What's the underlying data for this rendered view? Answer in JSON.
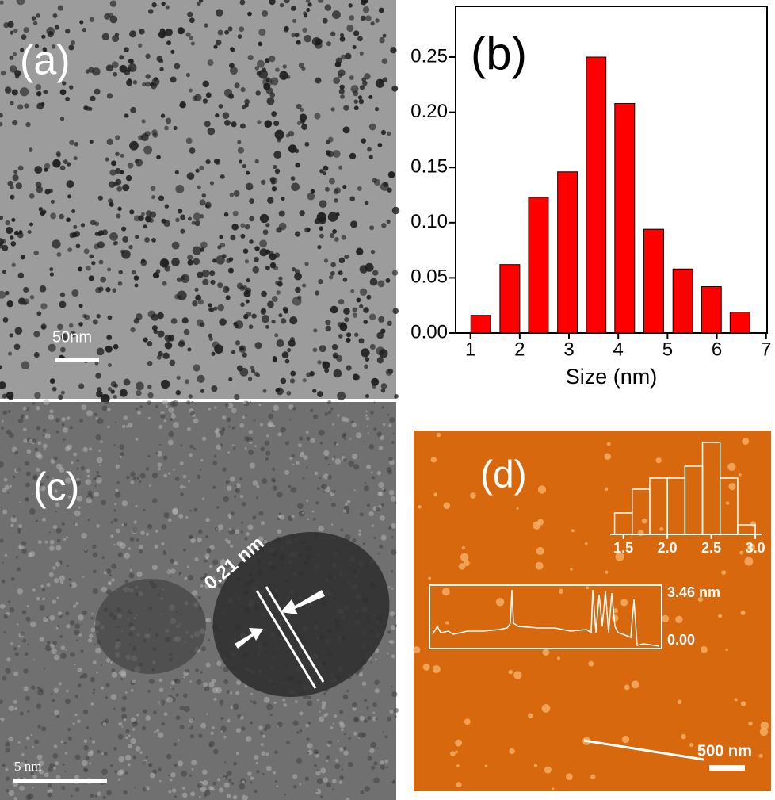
{
  "panels": {
    "a": {
      "label": "(a)",
      "scale_bar": "50nm"
    },
    "c": {
      "label": "(c)",
      "lattice": "0.21 nm",
      "scale_bar": "5 nm"
    },
    "d": {
      "label": "(d)",
      "profile_max": "3.46 nm",
      "profile_min": "0.00",
      "scale_bar": "500 nm"
    }
  },
  "chart_data": [
    {
      "type": "bar",
      "label": "(b)",
      "xlabel": "Size (nm)",
      "color": "#ff0000",
      "x": [
        1.21,
        1.8,
        2.38,
        2.97,
        3.55,
        4.13,
        4.72,
        5.31,
        5.89,
        6.47
      ],
      "values": [
        0.016,
        0.062,
        0.123,
        0.146,
        0.25,
        0.208,
        0.094,
        0.058,
        0.042,
        0.019
      ],
      "xlim": [
        0.7,
        7.02
      ],
      "xticks": [
        1,
        2,
        3,
        4,
        5,
        6,
        7
      ],
      "ylim": [
        0,
        0.296
      ],
      "yticks": [
        {
          "value": 0,
          "label": "0.00"
        },
        {
          "value": 0.05,
          "label": "0.05"
        },
        {
          "value": 0.1,
          "label": "0.10"
        },
        {
          "value": 0.15,
          "label": "0.15"
        },
        {
          "value": 0.2,
          "label": "0.20"
        },
        {
          "value": 0.25,
          "label": "0.25"
        }
      ]
    },
    {
      "type": "histogram",
      "color": "#ffffff",
      "bins": [
        1.4,
        1.6,
        1.8,
        2.0,
        2.2,
        2.4,
        2.6,
        2.8,
        3.0
      ],
      "values": [
        27,
        57,
        71,
        71,
        86,
        116,
        71,
        12
      ],
      "xlim": [
        1.35,
        3.08
      ],
      "xticks": [
        1.5,
        {
          "value": 2,
          "label": "2.0"
        },
        2.5,
        {
          "value": 3,
          "label": "3.0"
        }
      ]
    }
  ]
}
